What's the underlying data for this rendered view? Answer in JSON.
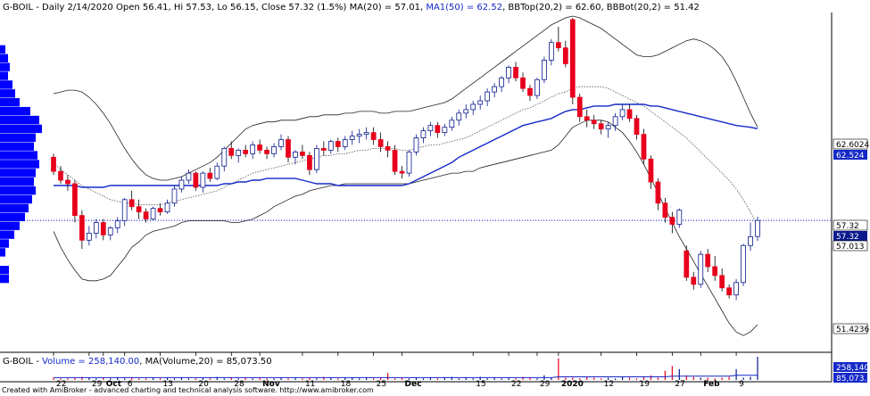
{
  "colors": {
    "up": "#0a1a8c",
    "down": "#e8001c",
    "ma50": "#1428c8",
    "bb": "#222222",
    "ma20": "#555555",
    "profile": "#0000ff",
    "price_line": "#0000cc"
  },
  "header": {
    "prefix": "G-BOIL - Daily 2/14/2020 Open 56.41, Hi 57.53, Lo 56.15, Close 57.32 (1.5%) MA(20) = 57.01, ",
    "ma50_text": "MA1(50) = 62.52",
    "suffix": ", BBTop(20,2) = 62.60, BBBot(20,2) = 51.42"
  },
  "volume_header": {
    "prefix": "G-BOIL - ",
    "vol_text": "Volume = 258,140.00",
    "sep": ", ",
    "ma_text": "MA(Volume,20) = 85,073.50"
  },
  "footer": "Created with AmiBroker - advanced charting and technical analysis software. http://www.amibroker.com",
  "axis_labels": {
    "bbtop": "62.6024",
    "ma50": "62.524",
    "close": "57.32",
    "close2": "57.32",
    "ma20": "57.013",
    "bbbot": "51.4236",
    "vol": "258,140",
    "volma": "85,073.5"
  },
  "x_ticks": [
    {
      "label": "22",
      "i": 0
    },
    {
      "label": "29",
      "i": 5
    },
    {
      "label": "Oct",
      "i": 7
    },
    {
      "label": "6",
      "i": 10
    },
    {
      "label": "13",
      "i": 15
    },
    {
      "label": "20",
      "i": 20
    },
    {
      "label": "28",
      "i": 25
    },
    {
      "label": "Nov",
      "i": 29
    },
    {
      "label": "11",
      "i": 35
    },
    {
      "label": "18",
      "i": 40
    },
    {
      "label": "25",
      "i": 45
    },
    {
      "label": "Dec",
      "i": 49
    },
    {
      "label": "15",
      "i": 59
    },
    {
      "label": "22",
      "i": 64
    },
    {
      "label": "29",
      "i": 68
    },
    {
      "label": "2020",
      "i": 71
    },
    {
      "label": "12",
      "i": 77
    },
    {
      "label": "19",
      "i": 82
    },
    {
      "label": "27",
      "i": 87
    },
    {
      "label": "Feb",
      "i": 91
    },
    {
      "label": "9",
      "i": 96
    }
  ],
  "chart_data": {
    "type": "candlestick",
    "ylim": [
      50.0,
      68.8
    ],
    "candles": [
      [
        60.9,
        61.1,
        59.9,
        60.1
      ],
      [
        60.1,
        60.4,
        59.4,
        59.6
      ],
      [
        59.6,
        59.9,
        59.0,
        59.4
      ],
      [
        59.4,
        59.6,
        57.2,
        57.6
      ],
      [
        57.6,
        57.9,
        55.7,
        56.2
      ],
      [
        56.2,
        57.0,
        55.9,
        56.6
      ],
      [
        56.6,
        57.4,
        56.3,
        57.2
      ],
      [
        57.2,
        57.4,
        56.2,
        56.5
      ],
      [
        56.5,
        57.0,
        56.2,
        56.9
      ],
      [
        56.9,
        57.5,
        56.6,
        57.3
      ],
      [
        57.3,
        58.6,
        57.0,
        58.5
      ],
      [
        58.5,
        59.0,
        57.9,
        58.1
      ],
      [
        58.1,
        58.5,
        57.4,
        57.8
      ],
      [
        57.8,
        58.0,
        57.2,
        57.4
      ],
      [
        57.4,
        58.1,
        57.3,
        58.0
      ],
      [
        58.0,
        58.3,
        57.6,
        57.8
      ],
      [
        57.8,
        58.5,
        57.7,
        58.3
      ],
      [
        58.3,
        59.3,
        58.1,
        59.1
      ],
      [
        59.1,
        59.8,
        58.9,
        59.6
      ],
      [
        59.6,
        60.2,
        59.4,
        60.0
      ],
      [
        60.0,
        60.1,
        59.0,
        59.2
      ],
      [
        59.2,
        60.1,
        58.9,
        60.0
      ],
      [
        60.0,
        60.3,
        59.5,
        59.7
      ],
      [
        59.7,
        60.6,
        59.6,
        60.4
      ],
      [
        60.4,
        61.5,
        60.1,
        61.4
      ],
      [
        61.4,
        61.8,
        60.8,
        61.0
      ],
      [
        61.0,
        61.4,
        60.6,
        61.3
      ],
      [
        61.3,
        61.6,
        60.9,
        61.1
      ],
      [
        61.1,
        61.8,
        60.8,
        61.6
      ],
      [
        61.6,
        61.9,
        61.1,
        61.3
      ],
      [
        61.3,
        61.5,
        60.8,
        61.1
      ],
      [
        61.1,
        61.7,
        60.9,
        61.5
      ],
      [
        61.5,
        62.2,
        61.3,
        61.9
      ],
      [
        61.9,
        62.1,
        60.6,
        60.9
      ],
      [
        60.9,
        61.3,
        60.5,
        61.2
      ],
      [
        61.2,
        61.6,
        60.8,
        61.0
      ],
      [
        61.0,
        61.2,
        59.9,
        60.2
      ],
      [
        60.2,
        61.6,
        60.0,
        61.4
      ],
      [
        61.4,
        61.8,
        61.0,
        61.3
      ],
      [
        61.3,
        61.9,
        61.1,
        61.8
      ],
      [
        61.8,
        62.0,
        61.2,
        61.5
      ],
      [
        61.5,
        62.1,
        61.3,
        61.9
      ],
      [
        61.9,
        62.4,
        61.6,
        62.1
      ],
      [
        62.1,
        62.5,
        61.7,
        62.2
      ],
      [
        62.2,
        62.6,
        61.9,
        62.3
      ],
      [
        62.3,
        62.6,
        61.6,
        61.9
      ],
      [
        61.9,
        62.3,
        61.2,
        61.5
      ],
      [
        61.5,
        61.8,
        60.9,
        61.3
      ],
      [
        61.3,
        61.6,
        59.9,
        60.1
      ],
      [
        60.1,
        60.4,
        59.7,
        60.0
      ],
      [
        60.0,
        61.3,
        59.8,
        61.2
      ],
      [
        61.2,
        62.2,
        61.0,
        62.0
      ],
      [
        62.0,
        62.6,
        61.7,
        62.4
      ],
      [
        62.4,
        62.9,
        62.1,
        62.7
      ],
      [
        62.7,
        62.9,
        62.0,
        62.3
      ],
      [
        62.3,
        62.8,
        62.1,
        62.6
      ],
      [
        62.6,
        63.2,
        62.4,
        63.0
      ],
      [
        63.0,
        63.6,
        62.7,
        63.4
      ],
      [
        63.4,
        63.9,
        63.1,
        63.6
      ],
      [
        63.6,
        64.1,
        63.3,
        63.9
      ],
      [
        63.9,
        64.4,
        63.6,
        64.1
      ],
      [
        64.1,
        64.8,
        63.8,
        64.6
      ],
      [
        64.6,
        65.1,
        64.3,
        64.9
      ],
      [
        64.9,
        65.5,
        64.6,
        65.4
      ],
      [
        65.4,
        66.1,
        65.1,
        66.0
      ],
      [
        66.0,
        66.3,
        65.2,
        65.4
      ],
      [
        65.4,
        65.7,
        64.6,
        64.8
      ],
      [
        64.8,
        65.0,
        64.1,
        64.4
      ],
      [
        64.4,
        65.4,
        64.2,
        65.3
      ],
      [
        65.3,
        66.6,
        65.1,
        66.4
      ],
      [
        66.4,
        67.6,
        66.1,
        67.4
      ],
      [
        67.4,
        68.3,
        66.9,
        67.1
      ],
      [
        67.1,
        67.5,
        66.0,
        66.2
      ],
      [
        68.7,
        68.8,
        63.9,
        64.3
      ],
      [
        64.3,
        64.5,
        62.9,
        63.2
      ],
      [
        63.2,
        63.6,
        62.6,
        63.0
      ],
      [
        63.0,
        63.3,
        62.5,
        62.8
      ],
      [
        62.8,
        63.0,
        62.2,
        62.5
      ],
      [
        62.5,
        62.9,
        62.0,
        62.7
      ],
      [
        62.7,
        63.4,
        62.4,
        63.2
      ],
      [
        63.2,
        63.9,
        63.0,
        63.6
      ],
      [
        63.6,
        63.9,
        62.9,
        63.1
      ],
      [
        63.1,
        63.3,
        61.9,
        62.2
      ],
      [
        62.2,
        62.5,
        60.5,
        60.8
      ],
      [
        60.8,
        61.0,
        59.1,
        59.5
      ],
      [
        59.5,
        59.7,
        57.9,
        58.3
      ],
      [
        58.3,
        58.6,
        57.2,
        57.5
      ],
      [
        57.5,
        57.8,
        56.6,
        57.1
      ],
      [
        57.1,
        58.0,
        56.9,
        57.9
      ],
      [
        55.6,
        55.9,
        53.9,
        54.1
      ],
      [
        54.1,
        54.4,
        53.4,
        53.7
      ],
      [
        53.7,
        55.6,
        53.5,
        55.4
      ],
      [
        55.4,
        55.7,
        54.4,
        54.7
      ],
      [
        54.7,
        55.3,
        53.9,
        54.2
      ],
      [
        54.2,
        54.6,
        53.3,
        53.5
      ],
      [
        53.5,
        53.7,
        52.9,
        53.1
      ],
      [
        53.1,
        54.0,
        52.8,
        53.8
      ],
      [
        53.8,
        56.0,
        53.6,
        55.9
      ],
      [
        55.9,
        57.2,
        55.6,
        56.4
      ],
      [
        56.41,
        57.53,
        56.15,
        57.32
      ]
    ],
    "ma50": [
      59.3,
      59.3,
      59.3,
      59.3,
      59.2,
      59.2,
      59.2,
      59.2,
      59.3,
      59.3,
      59.3,
      59.3,
      59.3,
      59.3,
      59.3,
      59.3,
      59.3,
      59.3,
      59.3,
      59.3,
      59.3,
      59.3,
      59.3,
      59.3,
      59.4,
      59.4,
      59.5,
      59.5,
      59.6,
      59.6,
      59.7,
      59.7,
      59.7,
      59.7,
      59.7,
      59.6,
      59.5,
      59.4,
      59.4,
      59.4,
      59.3,
      59.3,
      59.3,
      59.3,
      59.3,
      59.3,
      59.3,
      59.3,
      59.3,
      59.3,
      59.4,
      59.6,
      59.8,
      60.0,
      60.2,
      60.4,
      60.6,
      60.9,
      61.1,
      61.3,
      61.5,
      61.7,
      61.9,
      62.1,
      62.3,
      62.5,
      62.7,
      62.8,
      62.9,
      63.0,
      63.1,
      63.3,
      63.5,
      63.6,
      63.6,
      63.7,
      63.8,
      63.8,
      63.8,
      63.9,
      63.9,
      63.9,
      63.9,
      63.9,
      63.8,
      63.8,
      63.7,
      63.6,
      63.5,
      63.4,
      63.3,
      63.2,
      63.1,
      63.0,
      62.9,
      62.8,
      62.7,
      62.65,
      62.6,
      62.52
    ],
    "ma20": [
      60.6,
      60.2,
      59.9,
      59.6,
      59.3,
      59.1,
      58.9,
      58.7,
      58.5,
      58.4,
      58.3,
      58.3,
      58.2,
      58.2,
      58.2,
      58.2,
      58.3,
      58.4,
      58.5,
      58.6,
      58.7,
      58.8,
      58.9,
      59.0,
      59.2,
      59.4,
      59.6,
      59.8,
      60.0,
      60.1,
      60.2,
      60.3,
      60.4,
      60.5,
      60.6,
      60.7,
      60.8,
      60.9,
      61.0,
      61.0,
      61.1,
      61.1,
      61.2,
      61.3,
      61.3,
      61.4,
      61.4,
      61.4,
      61.4,
      61.3,
      61.3,
      61.4,
      61.5,
      61.6,
      61.6,
      61.7,
      61.8,
      61.9,
      62.0,
      62.2,
      62.4,
      62.6,
      62.8,
      63.0,
      63.2,
      63.4,
      63.6,
      63.7,
      63.9,
      64.1,
      64.3,
      64.5,
      64.6,
      64.8,
      64.9,
      64.9,
      64.9,
      64.9,
      64.8,
      64.6,
      64.4,
      64.2,
      64.0,
      63.8,
      63.5,
      63.2,
      62.9,
      62.6,
      62.3,
      62.0,
      61.6,
      61.2,
      60.8,
      60.4,
      60.0,
      59.6,
      59.1,
      58.5,
      57.8,
      57.01
    ],
    "bbtop": [
      64.5,
      64.6,
      64.7,
      64.7,
      64.6,
      64.3,
      63.9,
      63.4,
      62.8,
      62.1,
      61.4,
      60.8,
      60.3,
      59.9,
      59.7,
      59.6,
      59.6,
      59.7,
      59.8,
      60.0,
      60.2,
      60.4,
      60.6,
      60.9,
      61.3,
      61.7,
      62.1,
      62.5,
      62.7,
      62.8,
      62.9,
      62.9,
      63.0,
      63.0,
      63.0,
      63.1,
      63.2,
      63.2,
      63.3,
      63.3,
      63.3,
      63.4,
      63.4,
      63.5,
      63.5,
      63.5,
      63.4,
      63.4,
      63.5,
      63.5,
      63.5,
      63.6,
      63.7,
      63.8,
      63.9,
      64.0,
      64.2,
      64.5,
      64.8,
      65.1,
      65.4,
      65.7,
      66.0,
      66.3,
      66.6,
      66.9,
      67.2,
      67.5,
      67.8,
      68.1,
      68.4,
      68.6,
      68.8,
      68.9,
      68.8,
      68.6,
      68.4,
      68.2,
      67.9,
      67.6,
      67.3,
      67.0,
      66.7,
      66.6,
      66.6,
      66.7,
      66.9,
      67.1,
      67.3,
      67.5,
      67.6,
      67.5,
      67.3,
      67.0,
      66.6,
      66.0,
      65.2,
      64.3,
      63.4,
      62.6
    ],
    "bbbot": [
      56.7,
      55.8,
      55.1,
      54.5,
      54.0,
      53.9,
      53.9,
      54.0,
      54.2,
      54.7,
      55.2,
      55.8,
      56.1,
      56.5,
      56.7,
      56.8,
      56.9,
      57.0,
      57.2,
      57.3,
      57.3,
      57.3,
      57.3,
      57.3,
      57.3,
      57.2,
      57.2,
      57.3,
      57.4,
      57.6,
      57.8,
      58.1,
      58.3,
      58.5,
      58.7,
      58.8,
      59.0,
      59.1,
      59.2,
      59.3,
      59.3,
      59.4,
      59.4,
      59.4,
      59.4,
      59.4,
      59.4,
      59.4,
      59.4,
      59.4,
      59.4,
      59.5,
      59.6,
      59.7,
      59.8,
      59.9,
      60.0,
      60.0,
      60.1,
      60.1,
      60.3,
      60.4,
      60.5,
      60.6,
      60.7,
      60.8,
      60.9,
      61.0,
      61.1,
      61.2,
      61.3,
      61.6,
      62.1,
      62.6,
      62.8,
      63.0,
      63.0,
      63.0,
      62.9,
      62.6,
      62.3,
      61.8,
      61.2,
      60.5,
      59.7,
      58.9,
      58.0,
      57.2,
      56.4,
      55.7,
      55.0,
      54.3,
      53.6,
      52.9,
      52.2,
      51.5,
      51.0,
      50.8,
      51.0,
      51.42
    ],
    "volume": [
      3,
      2,
      2,
      3,
      4,
      3,
      2,
      3,
      2,
      3,
      2,
      3,
      2,
      2,
      3,
      2,
      3,
      2,
      3,
      2,
      2,
      3,
      2,
      4,
      2,
      3,
      2,
      3,
      2,
      3,
      2,
      2,
      3,
      2,
      3,
      2,
      3,
      2,
      4,
      3,
      2,
      3,
      3,
      2,
      3,
      2,
      3,
      9,
      2,
      3,
      2,
      3,
      2,
      3,
      2,
      3,
      4,
      2,
      3,
      2,
      4,
      2,
      3,
      2,
      3,
      2,
      4,
      3,
      2,
      6,
      3,
      28,
      3,
      3,
      2,
      4,
      3,
      2,
      3,
      2,
      4,
      3,
      2,
      4,
      6,
      3,
      12,
      18,
      14,
      6,
      4,
      3,
      3,
      2,
      3,
      4,
      14,
      3,
      4,
      30
    ],
    "vol_ma": [
      3,
      3,
      3,
      3,
      3,
      3,
      3,
      3,
      3,
      3,
      3,
      3,
      3,
      3,
      3,
      3,
      3,
      3,
      3,
      3,
      3,
      3,
      3,
      3,
      3,
      3,
      3,
      3,
      3,
      3,
      3,
      3,
      3,
      3,
      3,
      3,
      3,
      3,
      3,
      3,
      3,
      3,
      3,
      3,
      3,
      3,
      3,
      3,
      3,
      3,
      3,
      3,
      3,
      3,
      3,
      3,
      3,
      3,
      3,
      3,
      3,
      3,
      3,
      3,
      3,
      3,
      3,
      3,
      3,
      3,
      3,
      4,
      4,
      4,
      4,
      4,
      4,
      4,
      4,
      4,
      4,
      4,
      4,
      4,
      4,
      4,
      4,
      5,
      5,
      5,
      5,
      5,
      5,
      5,
      5,
      5,
      6,
      6,
      6,
      6
    ],
    "profile": [
      [
        67.0,
        6
      ],
      [
        66.5,
        9
      ],
      [
        66.0,
        11
      ],
      [
        65.5,
        9
      ],
      [
        65.0,
        14
      ],
      [
        64.5,
        17
      ],
      [
        64.0,
        22
      ],
      [
        63.5,
        34
      ],
      [
        63.0,
        44
      ],
      [
        62.5,
        47
      ],
      [
        62.0,
        40
      ],
      [
        61.5,
        38
      ],
      [
        61.0,
        42
      ],
      [
        60.5,
        44
      ],
      [
        60.0,
        40
      ],
      [
        59.5,
        38
      ],
      [
        59.0,
        40
      ],
      [
        58.5,
        36
      ],
      [
        58.0,
        32
      ],
      [
        57.5,
        28
      ],
      [
        57.0,
        22
      ],
      [
        56.5,
        16
      ],
      [
        56.0,
        10
      ],
      [
        55.5,
        6
      ],
      [
        54.5,
        10
      ],
      [
        54.0,
        10
      ]
    ]
  }
}
